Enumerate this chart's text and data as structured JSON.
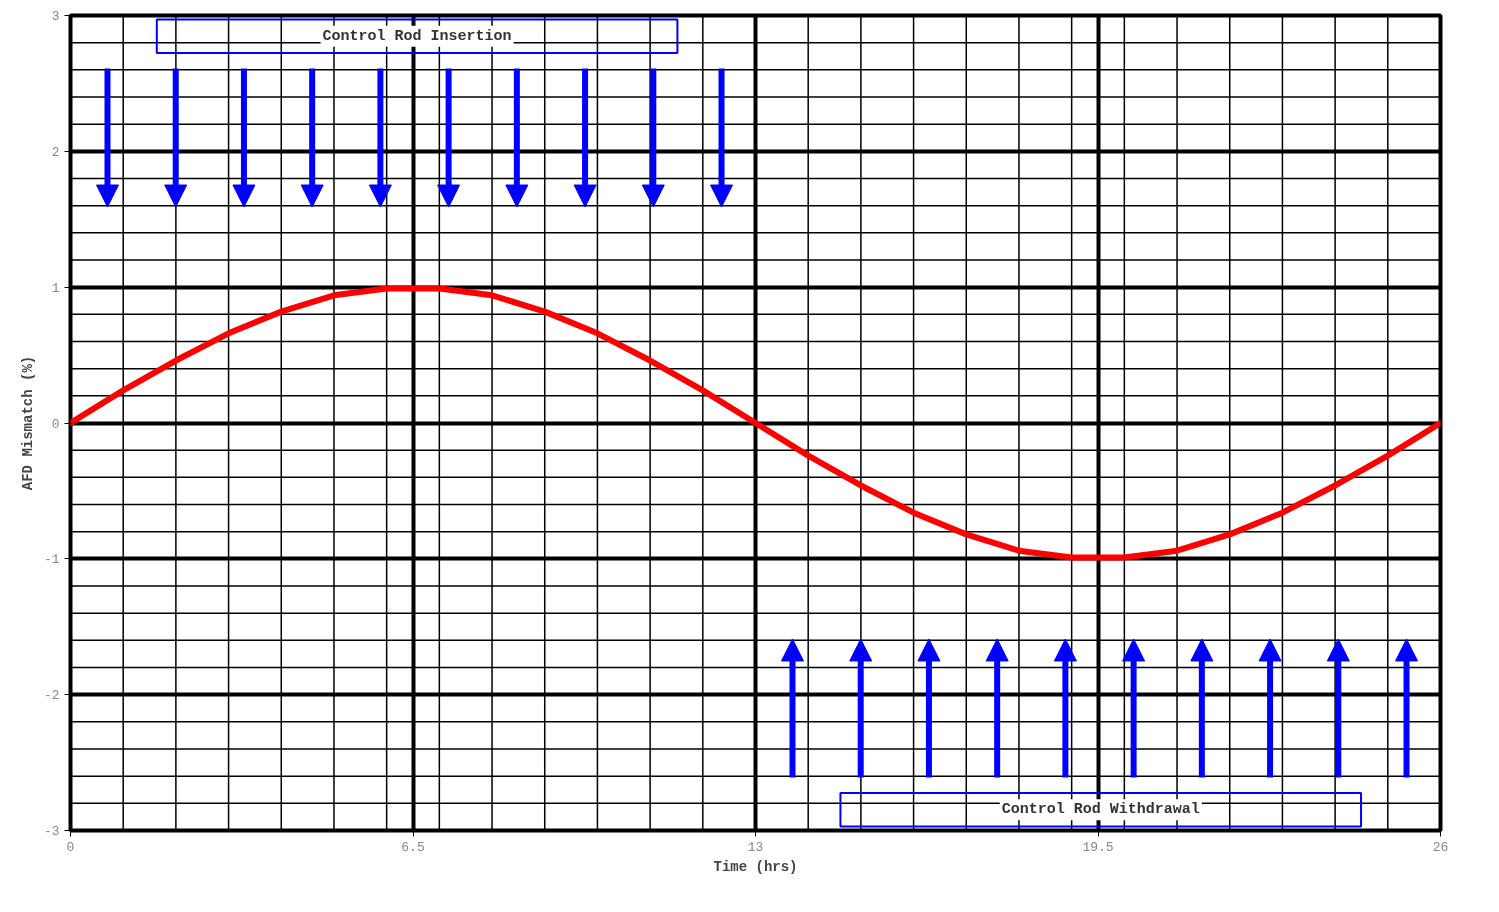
{
  "chart_data": {
    "type": "line",
    "xlabel": "Time (hrs)",
    "ylabel": "AFD Mismatch (%)",
    "x": [
      0,
      1,
      2,
      3,
      4,
      5,
      6,
      7,
      8,
      9,
      10,
      11,
      12,
      13,
      14,
      15,
      16,
      17,
      18,
      19,
      20,
      21,
      22,
      23,
      24,
      25,
      26
    ],
    "series": [
      {
        "color": "#ff0000",
        "values": [
          0,
          0.24,
          0.46,
          0.66,
          0.82,
          0.94,
          0.99,
          0.99,
          0.94,
          0.82,
          0.66,
          0.46,
          0.24,
          0,
          -0.24,
          -0.46,
          -0.66,
          -0.82,
          -0.94,
          -0.99,
          -0.99,
          -0.94,
          -0.82,
          -0.66,
          -0.46,
          -0.24,
          0
        ]
      }
    ],
    "xlim": [
      0,
      26
    ],
    "ylim": [
      -3,
      3
    ],
    "xticks": [
      0,
      6.5,
      13,
      19.5,
      26
    ],
    "yticks": [
      -3,
      -2,
      -1,
      0,
      1,
      2,
      3
    ],
    "grid": true,
    "line_style": "solid",
    "marker": "none",
    "annotations": [
      "Control Rod Insertion",
      "Control Rod Withdrawal"
    ]
  }
}
